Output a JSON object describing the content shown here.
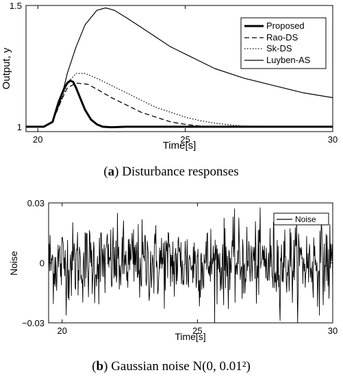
{
  "chart_data": [
    {
      "type": "line",
      "xlabel": "Time[s]",
      "ylabel": "Output, y",
      "xlim": [
        19.6,
        30
      ],
      "ylim": [
        0.98,
        1.5
      ],
      "xticks": [
        "20",
        "25",
        "30"
      ],
      "yticks": [
        "1",
        "1.5"
      ],
      "grid": false,
      "legend_position": "top-right",
      "caption": {
        "label": "a",
        "text": " Disturbance responses"
      },
      "series": [
        {
          "name": "Proposed",
          "style": "thick-solid",
          "x": [
            19.6,
            20.2,
            20.5,
            20.7,
            20.9,
            21.0,
            21.1,
            21.2,
            21.3,
            21.4,
            21.5,
            21.6,
            21.8,
            22.0,
            22.2,
            22.5,
            23.0,
            30.0
          ],
          "y": [
            1.0,
            1.0,
            1.02,
            1.1,
            1.16,
            1.18,
            1.19,
            1.185,
            1.16,
            1.13,
            1.1,
            1.07,
            1.03,
            1.01,
            1.0,
            0.998,
            1.0,
            1.0
          ]
        },
        {
          "name": "Rao-DS",
          "style": "dashed",
          "x": [
            19.6,
            20.2,
            20.5,
            20.8,
            21.0,
            21.3,
            21.7,
            22.0,
            22.5,
            23.0,
            23.5,
            24.0,
            24.5,
            25.0,
            25.5,
            26.0,
            30.0
          ],
          "y": [
            1.0,
            1.0,
            1.02,
            1.11,
            1.16,
            1.18,
            1.175,
            1.155,
            1.12,
            1.09,
            1.06,
            1.04,
            1.02,
            1.01,
            1.003,
            1.0,
            1.0
          ]
        },
        {
          "name": "Sk-DS",
          "style": "dotted",
          "x": [
            19.6,
            20.2,
            20.5,
            20.8,
            21.0,
            21.3,
            21.6,
            22.0,
            22.5,
            23.0,
            23.5,
            24.0,
            24.5,
            25.0,
            25.5,
            26.0,
            26.5,
            27.0,
            30.0
          ],
          "y": [
            1.0,
            1.0,
            1.02,
            1.11,
            1.18,
            1.22,
            1.22,
            1.2,
            1.17,
            1.14,
            1.11,
            1.08,
            1.06,
            1.04,
            1.025,
            1.015,
            1.008,
            1.003,
            1.0
          ]
        },
        {
          "name": "Luyben-AS",
          "style": "solid",
          "x": [
            19.6,
            20.2,
            20.5,
            20.8,
            21.0,
            21.3,
            21.6,
            22.0,
            22.3,
            22.6,
            23.0,
            23.5,
            24.0,
            24.5,
            25.0,
            26.0,
            27.0,
            28.0,
            29.0,
            30.0
          ],
          "y": [
            1.0,
            1.0,
            1.02,
            1.12,
            1.22,
            1.33,
            1.42,
            1.48,
            1.49,
            1.48,
            1.45,
            1.41,
            1.37,
            1.33,
            1.3,
            1.24,
            1.2,
            1.17,
            1.14,
            1.12
          ]
        }
      ]
    },
    {
      "type": "line",
      "xlabel": "Time[s]",
      "ylabel": "Noise",
      "xlim": [
        19.5,
        30
      ],
      "ylim": [
        -0.03,
        0.03
      ],
      "xticks": [
        "20",
        "25",
        "30"
      ],
      "yticks": [
        "-0.03",
        "0",
        "0.03"
      ],
      "grid": false,
      "legend_position": "top-right",
      "caption": {
        "label": "b",
        "text": " Gaussian noise N(0, 0.01²)"
      },
      "series": [
        {
          "name": "Noise",
          "style": "solid",
          "distribution": "gaussian",
          "mean": 0,
          "std": 0.01,
          "x_start": 19.5,
          "x_end": 30,
          "count": 600
        }
      ]
    }
  ]
}
